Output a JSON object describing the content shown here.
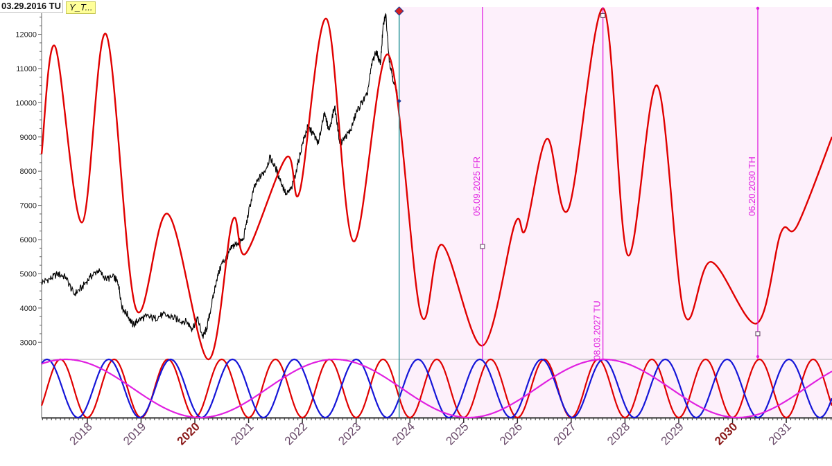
{
  "header": {
    "cursor_date": "03.29.2016 TU",
    "symbol": "Y_T..."
  },
  "colors": {
    "price": "#000000",
    "projection": "#e00000",
    "cycle_red": "#e00000",
    "cycle_blue": "#1515d8",
    "cycle_magenta": "#e020e0",
    "forecast_zone": "#fdf0fb",
    "marker": "#e020e0",
    "cursor_line": "#2a9a9a",
    "year_label": "#6a4a6a",
    "decade_label": "#8b1a1a"
  },
  "chart_data": [
    {
      "type": "line",
      "title": "",
      "xlabel": "",
      "ylabel": "",
      "xlim": [
        2017.15,
        2031.85
      ],
      "ylim": [
        2500,
        12800
      ],
      "y_ticks": [
        3000,
        4000,
        5000,
        6000,
        7000,
        8000,
        9000,
        10000,
        11000,
        12000
      ],
      "x_ticks": [
        {
          "label": "2018",
          "value": 2018,
          "decade": false
        },
        {
          "label": "2019",
          "value": 2019,
          "decade": false
        },
        {
          "label": "2020",
          "value": 2020,
          "decade": true
        },
        {
          "label": "2021",
          "value": 2021,
          "decade": false
        },
        {
          "label": "2022",
          "value": 2022,
          "decade": false
        },
        {
          "label": "2023",
          "value": 2023,
          "decade": false
        },
        {
          "label": "2024",
          "value": 2024,
          "decade": false
        },
        {
          "label": "2025",
          "value": 2025,
          "decade": false
        },
        {
          "label": "2026",
          "value": 2026,
          "decade": false
        },
        {
          "label": "2027",
          "value": 2027,
          "decade": false
        },
        {
          "label": "2028",
          "value": 2028,
          "decade": false
        },
        {
          "label": "2029",
          "value": 2029,
          "decade": false
        },
        {
          "label": "2030",
          "value": 2030,
          "decade": true
        },
        {
          "label": "2031",
          "value": 2031,
          "decade": false
        }
      ],
      "grid": false,
      "forecast_start": 2023.8,
      "series": [
        {
          "kind": "price",
          "x": [
            2017.15,
            2017.3,
            2017.45,
            2017.6,
            2017.75,
            2017.9,
            2018.05,
            2018.2,
            2018.35,
            2018.5,
            2018.58,
            2018.65,
            2018.75,
            2018.85,
            2018.95,
            2019.1,
            2019.25,
            2019.4,
            2019.55,
            2019.7,
            2019.85,
            2019.95,
            2020.05,
            2020.15,
            2020.22,
            2020.3,
            2020.4,
            2020.5,
            2020.6,
            2020.7,
            2020.8,
            2020.9,
            2021.0,
            2021.1,
            2021.2,
            2021.3,
            2021.4,
            2021.5,
            2021.6,
            2021.7,
            2021.8,
            2021.9,
            2022.0,
            2022.1,
            2022.2,
            2022.3,
            2022.4,
            2022.5,
            2022.6,
            2022.7,
            2022.8,
            2022.9,
            2023.0,
            2023.1,
            2023.2,
            2023.3,
            2023.38,
            2023.45,
            2023.5,
            2023.55,
            2023.62,
            2023.7,
            2023.8
          ],
          "y": [
            4750,
            4850,
            5000,
            4900,
            4400,
            4600,
            4900,
            5100,
            4850,
            4900,
            4700,
            4000,
            3800,
            3500,
            3650,
            3750,
            3700,
            3800,
            3750,
            3650,
            3600,
            3400,
            3700,
            3150,
            3400,
            4000,
            4800,
            5300,
            5500,
            5800,
            5900,
            6000,
            6800,
            7500,
            7800,
            8000,
            8400,
            8100,
            7700,
            7300,
            7500,
            8100,
            8800,
            9300,
            9100,
            8800,
            9700,
            9200,
            9900,
            8800,
            9000,
            9200,
            9700,
            10000,
            10200,
            11200,
            11500,
            11100,
            12200,
            12600,
            11200,
            10600,
            10050
          ]
        },
        {
          "kind": "projection",
          "x": [
            2017.15,
            2017.4,
            2017.9,
            2018.35,
            2018.9,
            2019.5,
            2020.25,
            2020.7,
            2020.95,
            2021.7,
            2021.95,
            2022.45,
            2022.95,
            2023.6,
            2024.2,
            2024.6,
            2025.35,
            2025.95,
            2026.15,
            2026.55,
            2026.95,
            2027.6,
            2028.05,
            2028.6,
            2029.1,
            2029.6,
            2030.45,
            2030.9,
            2031.2,
            2031.85
          ],
          "y": [
            8500,
            11650,
            6500,
            12000,
            4000,
            6750,
            2500,
            6550,
            5600,
            8400,
            7400,
            12450,
            5950,
            11400,
            3850,
            5850,
            2900,
            6450,
            6300,
            8950,
            6900,
            12750,
            5550,
            10500,
            3850,
            5350,
            3550,
            6200,
            6400,
            9000
          ]
        }
      ],
      "annotations": [
        {
          "label": "05.09.2025 FR",
          "x": 2025.35,
          "y": 5800
        },
        {
          "label": "08.03.2027 TU",
          "x": 2027.59,
          "y": 12550
        },
        {
          "label": "06.20.2030 TH",
          "x": 2030.47,
          "y": 3250
        }
      ]
    },
    {
      "type": "line",
      "title": "",
      "ylim": [
        0,
        1
      ],
      "series": [
        {
          "kind": "cycle",
          "color": "red",
          "period_years": 1.0,
          "peak_at": 2017.5
        },
        {
          "kind": "cycle",
          "color": "blue",
          "period_years": 1.15,
          "peak_at": 2018.4
        },
        {
          "kind": "cycle",
          "color": "magenta",
          "period_years": 5.0,
          "peak_at": 2017.6
        }
      ]
    }
  ]
}
